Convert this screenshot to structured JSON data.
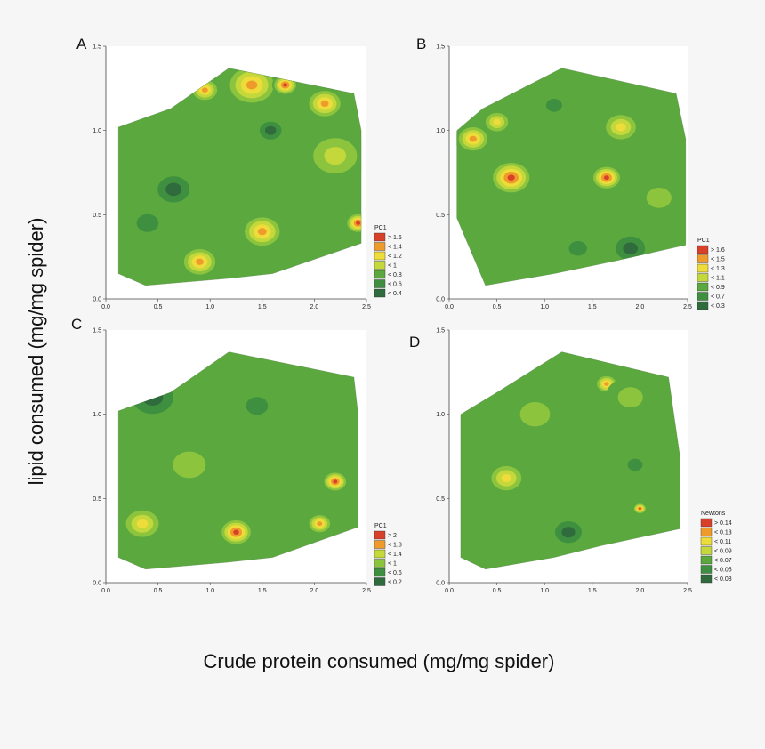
{
  "figure": {
    "ylabel": "lipid consumed (mg/mg spider)",
    "xlabel": "Crude protein consumed (mg/mg spider)"
  },
  "colors": {
    "background": "#f6f6f6",
    "ramp": [
      "#2f6b3c",
      "#3e8f3f",
      "#5aa83e",
      "#8cc43e",
      "#c4d83c",
      "#eddc3a",
      "#ef9b2c",
      "#d9402a"
    ]
  },
  "chart_data": [
    {
      "panel": "A",
      "type": "contour",
      "xlim": [
        0.0,
        2.5
      ],
      "ylim": [
        0.0,
        1.5
      ],
      "x_ticks": [
        "0.0",
        "0.5",
        "1.0",
        "1.5",
        "2.0",
        "2.5"
      ],
      "y_ticks": [
        "0.0",
        "0.5",
        "1.0",
        "1.5"
      ],
      "legend_title": "PC1",
      "legend": [
        "> 1.6",
        "< 1.4",
        "< 1.2",
        "< 1",
        "< 0.8",
        "< 0.6",
        "< 0.4"
      ],
      "hull": [
        [
          0.12,
          1.02
        ],
        [
          0.12,
          0.15
        ],
        [
          0.38,
          0.08
        ],
        [
          1.15,
          0.12
        ],
        [
          1.6,
          0.15
        ],
        [
          2.45,
          0.33
        ],
        [
          2.45,
          1.0
        ],
        [
          2.38,
          1.22
        ],
        [
          1.18,
          1.37
        ],
        [
          0.62,
          1.13
        ]
      ],
      "hotspots": [
        {
          "x": 1.4,
          "y": 1.27,
          "level": 6,
          "r": 0.25
        },
        {
          "x": 1.72,
          "y": 1.27,
          "level": 7,
          "r": 0.12
        },
        {
          "x": 2.1,
          "y": 1.16,
          "level": 6,
          "r": 0.18
        },
        {
          "x": 0.95,
          "y": 1.24,
          "level": 6,
          "r": 0.14
        },
        {
          "x": 2.42,
          "y": 0.45,
          "level": 7,
          "r": 0.12
        },
        {
          "x": 1.5,
          "y": 0.4,
          "level": 6,
          "r": 0.2
        },
        {
          "x": 0.9,
          "y": 0.22,
          "level": 6,
          "r": 0.18
        },
        {
          "x": 0.65,
          "y": 0.65,
          "level": 0,
          "r": 0.22
        },
        {
          "x": 1.58,
          "y": 1.0,
          "level": 0,
          "r": 0.15
        },
        {
          "x": 0.4,
          "y": 0.45,
          "level": 1,
          "r": 0.2
        },
        {
          "x": 2.2,
          "y": 0.85,
          "level": 4,
          "r": 0.3
        }
      ]
    },
    {
      "panel": "B",
      "type": "contour",
      "xlim": [
        0.0,
        2.5
      ],
      "ylim": [
        0.0,
        1.5
      ],
      "x_ticks": [
        "0.0",
        "0.5",
        "1.0",
        "1.5",
        "2.0",
        "2.5"
      ],
      "y_ticks": [
        "0.0",
        "0.5",
        "1.0",
        "1.5"
      ],
      "legend_title": "PC1",
      "legend": [
        "> 1.6",
        "< 1.5",
        "< 1.3",
        "< 1.1",
        "< 0.9",
        "< 0.7",
        "< 0.3"
      ],
      "hull": [
        [
          0.08,
          1.0
        ],
        [
          0.08,
          0.48
        ],
        [
          0.38,
          0.08
        ],
        [
          1.1,
          0.15
        ],
        [
          1.7,
          0.22
        ],
        [
          2.48,
          0.32
        ],
        [
          2.48,
          0.95
        ],
        [
          2.38,
          1.22
        ],
        [
          1.18,
          1.37
        ],
        [
          0.35,
          1.13
        ]
      ],
      "hotspots": [
        {
          "x": 0.65,
          "y": 0.72,
          "level": 7,
          "r": 0.22
        },
        {
          "x": 0.25,
          "y": 0.95,
          "level": 6,
          "r": 0.18
        },
        {
          "x": 1.65,
          "y": 0.72,
          "level": 7,
          "r": 0.16
        },
        {
          "x": 1.8,
          "y": 1.02,
          "level": 5,
          "r": 0.2
        },
        {
          "x": 0.5,
          "y": 1.05,
          "level": 5,
          "r": 0.15
        },
        {
          "x": 1.1,
          "y": 1.15,
          "level": 1,
          "r": 0.16
        },
        {
          "x": 1.9,
          "y": 0.3,
          "level": 0,
          "r": 0.22
        },
        {
          "x": 1.35,
          "y": 0.3,
          "level": 1,
          "r": 0.18
        },
        {
          "x": 2.2,
          "y": 0.6,
          "level": 3,
          "r": 0.25
        }
      ]
    },
    {
      "panel": "C",
      "type": "contour",
      "xlim": [
        0.0,
        2.5
      ],
      "ylim": [
        0.0,
        1.5
      ],
      "x_ticks": [
        "0.0",
        "0.5",
        "1.0",
        "1.5",
        "2.0",
        "2.5"
      ],
      "y_ticks": [
        "0.0",
        "0.5",
        "1.0",
        "1.5"
      ],
      "legend_title": "PC1",
      "legend": [
        "> 2",
        "< 1.8",
        "< 1.4",
        "< 1",
        "< 0.6",
        "< 0.2"
      ],
      "hull": [
        [
          0.12,
          1.02
        ],
        [
          0.12,
          0.15
        ],
        [
          0.38,
          0.08
        ],
        [
          1.15,
          0.12
        ],
        [
          1.6,
          0.15
        ],
        [
          2.42,
          0.33
        ],
        [
          2.42,
          1.0
        ],
        [
          2.38,
          1.22
        ],
        [
          1.18,
          1.37
        ],
        [
          0.62,
          1.13
        ]
      ],
      "hotspots": [
        {
          "x": 1.25,
          "y": 0.3,
          "level": 7,
          "r": 0.16
        },
        {
          "x": 2.2,
          "y": 0.6,
          "level": 7,
          "r": 0.12
        },
        {
          "x": 2.05,
          "y": 0.35,
          "level": 6,
          "r": 0.12
        },
        {
          "x": 0.35,
          "y": 0.35,
          "level": 5,
          "r": 0.2
        },
        {
          "x": 0.45,
          "y": 1.1,
          "level": 0,
          "r": 0.28
        },
        {
          "x": 1.45,
          "y": 1.05,
          "level": 1,
          "r": 0.2
        },
        {
          "x": 1.75,
          "y": 0.7,
          "level": 2,
          "r": 0.3
        },
        {
          "x": 0.8,
          "y": 0.7,
          "level": 3,
          "r": 0.3
        }
      ]
    },
    {
      "panel": "D",
      "type": "contour",
      "xlim": [
        0.0,
        2.5
      ],
      "ylim": [
        0.0,
        1.5
      ],
      "x_ticks": [
        "0.0",
        "0.5",
        "1.0",
        "1.5",
        "2.0",
        "2.5"
      ],
      "y_ticks": [
        "0.0",
        "0.5",
        "1.0",
        "1.5"
      ],
      "legend_title": "Newtons",
      "legend": [
        "> 0.14",
        "< 0.13",
        "< 0.11",
        "< 0.09",
        "< 0.07",
        "< 0.05",
        "< 0.03"
      ],
      "hull": [
        [
          0.12,
          1.0
        ],
        [
          0.12,
          0.15
        ],
        [
          0.38,
          0.08
        ],
        [
          1.1,
          0.15
        ],
        [
          1.6,
          0.22
        ],
        [
          2.42,
          0.32
        ],
        [
          2.42,
          0.75
        ],
        [
          2.3,
          1.22
        ],
        [
          1.18,
          1.37
        ],
        [
          0.5,
          1.13
        ]
      ],
      "hotspots": [
        {
          "x": 0.6,
          "y": 0.62,
          "level": 5,
          "r": 0.2
        },
        {
          "x": 1.65,
          "y": 1.18,
          "level": 6,
          "r": 0.12
        },
        {
          "x": 2.0,
          "y": 0.44,
          "level": 7,
          "r": 0.07
        },
        {
          "x": 1.25,
          "y": 0.3,
          "level": 0,
          "r": 0.2
        },
        {
          "x": 1.95,
          "y": 0.7,
          "level": 1,
          "r": 0.15
        },
        {
          "x": 1.9,
          "y": 1.1,
          "level": 3,
          "r": 0.25
        },
        {
          "x": 0.9,
          "y": 1.0,
          "level": 3,
          "r": 0.3
        }
      ]
    }
  ]
}
